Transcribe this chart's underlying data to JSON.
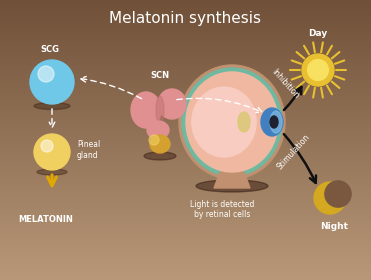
{
  "title": "Melatonin synthesis",
  "title_color": "#ffffff",
  "title_fontsize": 11,
  "bg_color": "#a08060",
  "bg_top": "#b89878",
  "bg_bottom": "#705040",
  "scg_label": "SCG",
  "scn_label": "SCN",
  "pineal_label": "Pineal\ngland",
  "melatonin_label": "MELATONIN",
  "light_label": "Light is detected\nby retinal cells",
  "day_label": "Day",
  "night_label": "Night",
  "inhibition_label": "Inhibition",
  "stimulation_label": "Stimulation",
  "scg_color": "#70c8e8",
  "pineal_color": "#f0d060",
  "sun_inner": "#f8e060",
  "sun_outer": "#e8c030",
  "sun_ray": "#e8c030",
  "moon_color": "#d4a820",
  "moon_bg": "#907060",
  "scn_pink": "#e09090",
  "scn_dark": "#c07070",
  "scn_gold": "#d4a030",
  "eye_sclera": "#f0b8a0",
  "eye_outer_ring": "#c09070",
  "eye_teal": "#70b8a0",
  "eye_iris": "#4080c0",
  "eye_cornea": "#80b8e0",
  "eye_pupil": "#202030",
  "eye_lens": "#d8c870",
  "arrow_white": "#ffffff",
  "arrow_dark": "#101010",
  "arrow_yellow": "#e0a800",
  "text_white": "#ffffff"
}
